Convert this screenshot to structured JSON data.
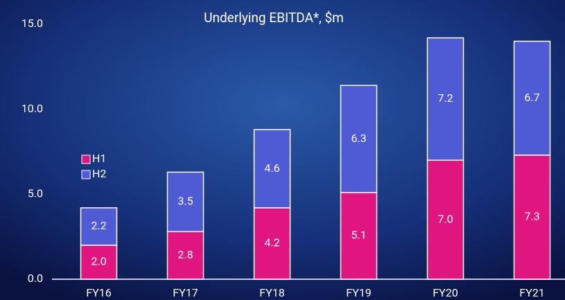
{
  "chart_data": {
    "type": "stacked_bar",
    "title": "Underlying EBITDA*, $m",
    "categories": [
      "FY16",
      "FY17",
      "FY18",
      "FY19",
      "FY20",
      "FY21"
    ],
    "series": [
      {
        "name": "H1",
        "color": "#e0157f",
        "values": [
          2.0,
          2.8,
          4.2,
          5.1,
          7.0,
          7.3
        ],
        "value_labels": [
          "2.0",
          "2.8",
          "4.2",
          "5.1",
          "7.0",
          "7.3"
        ]
      },
      {
        "name": "H2",
        "color": "#4f5bd5",
        "values": [
          2.2,
          3.5,
          4.6,
          6.3,
          7.2,
          6.7
        ],
        "value_labels": [
          "2.2",
          "3.5",
          "4.6",
          "6.3",
          "7.2",
          "6.7"
        ]
      }
    ],
    "ylim": [
      0,
      15
    ],
    "yticks": [
      {
        "value": 0,
        "label": "0.0"
      },
      {
        "value": 5,
        "label": "5.0"
      },
      {
        "value": 10,
        "label": "10.0"
      },
      {
        "value": 15,
        "label": "15.0"
      }
    ],
    "legend": "left"
  }
}
